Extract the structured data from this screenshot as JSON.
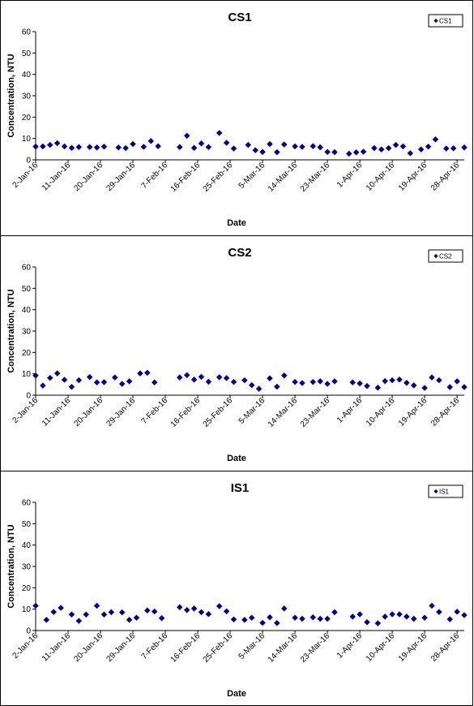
{
  "chart_data": [
    {
      "type": "scatter",
      "title": "CS1",
      "xlabel": "Date",
      "ylabel": "Concentration, NTU",
      "ylim": [
        0,
        60
      ],
      "yticks": [
        "0",
        "10",
        "20",
        "30",
        "40",
        "50",
        "60"
      ],
      "xlim": [
        "2016-01-02",
        "2016-04-30"
      ],
      "xticks": [
        "2-Jan-16",
        "11-Jan-16",
        "20-Jan-16",
        "29-Jan-16",
        "7-Feb-16",
        "16-Feb-16",
        "25-Feb-16",
        "5-Mar-16",
        "14-Mar-16",
        "23-Mar-16",
        "1-Apr-16",
        "10-Apr-16",
        "19-Apr-16",
        "28-Apr-16"
      ],
      "xtick_dates": [
        "2016-01-02",
        "2016-01-11",
        "2016-01-20",
        "2016-01-29",
        "2016-02-07",
        "2016-02-16",
        "2016-02-25",
        "2016-03-05",
        "2016-03-14",
        "2016-03-23",
        "2016-04-01",
        "2016-04-10",
        "2016-04-19",
        "2016-04-28"
      ],
      "grid": false,
      "legend_position": "top-right",
      "color": "#00008B",
      "marker": "diamond",
      "series": [
        {
          "name": "CS1",
          "x": [
            "2016-01-02",
            "2016-01-04",
            "2016-01-06",
            "2016-01-08",
            "2016-01-10",
            "2016-01-12",
            "2016-01-14",
            "2016-01-17",
            "2016-01-19",
            "2016-01-21",
            "2016-01-25",
            "2016-01-27",
            "2016-01-29",
            "2016-02-01",
            "2016-02-03",
            "2016-02-05",
            "2016-02-11",
            "2016-02-13",
            "2016-02-15",
            "2016-02-17",
            "2016-02-19",
            "2016-02-22",
            "2016-02-24",
            "2016-02-26",
            "2016-03-01",
            "2016-03-03",
            "2016-03-05",
            "2016-03-07",
            "2016-03-09",
            "2016-03-11",
            "2016-03-14",
            "2016-03-16",
            "2016-03-19",
            "2016-03-21",
            "2016-03-23",
            "2016-03-25",
            "2016-03-29",
            "2016-03-31",
            "2016-04-02",
            "2016-04-05",
            "2016-04-07",
            "2016-04-09",
            "2016-04-11",
            "2016-04-13",
            "2016-04-15",
            "2016-04-18",
            "2016-04-20",
            "2016-04-22",
            "2016-04-25",
            "2016-04-27",
            "2016-04-30"
          ],
          "y": [
            6.2,
            6.3,
            7.0,
            7.8,
            6.3,
            5.6,
            6.0,
            6.0,
            5.8,
            6.2,
            5.8,
            5.5,
            7.4,
            6.1,
            8.8,
            6.4,
            6.0,
            11.3,
            5.6,
            7.7,
            6.0,
            12.6,
            8.0,
            5.3,
            7.0,
            4.5,
            3.7,
            7.4,
            3.6,
            7.2,
            6.3,
            6.1,
            6.4,
            5.9,
            3.7,
            3.6,
            2.9,
            3.5,
            3.8,
            5.5,
            4.9,
            5.5,
            7.0,
            6.3,
            3.1,
            4.9,
            6.2,
            9.6,
            5.3,
            5.4,
            5.8
          ]
        }
      ]
    },
    {
      "type": "scatter",
      "title": "CS2",
      "xlabel": "Date",
      "ylabel": "Concentration, NTU",
      "ylim": [
        0,
        60
      ],
      "yticks": [
        "0",
        "10",
        "20",
        "30",
        "40",
        "50",
        "60"
      ],
      "xlim": [
        "2016-01-02",
        "2016-04-30"
      ],
      "xticks": [
        "2-Jan-16",
        "11-Jan-16",
        "20-Jan-16",
        "29-Jan-16",
        "7-Feb-16",
        "16-Feb-16",
        "25-Feb-16",
        "5-Mar-16",
        "14-Mar-16",
        "23-Mar-16",
        "1-Apr-16",
        "10-Apr-16",
        "19-Apr-16",
        "28-Apr-16"
      ],
      "xtick_dates": [
        "2016-01-02",
        "2016-01-11",
        "2016-01-20",
        "2016-01-29",
        "2016-02-07",
        "2016-02-16",
        "2016-02-25",
        "2016-03-05",
        "2016-03-14",
        "2016-03-23",
        "2016-04-01",
        "2016-04-10",
        "2016-04-19",
        "2016-04-28"
      ],
      "grid": false,
      "legend_position": "top-right",
      "color": "#00008B",
      "marker": "diamond",
      "series": [
        {
          "name": "CS2",
          "x": [
            "2016-01-02",
            "2016-01-04",
            "2016-01-06",
            "2016-01-08",
            "2016-01-10",
            "2016-01-12",
            "2016-01-14",
            "2016-01-17",
            "2016-01-19",
            "2016-01-21",
            "2016-01-24",
            "2016-01-26",
            "2016-01-28",
            "2016-01-31",
            "2016-02-02",
            "2016-02-04",
            "2016-02-11",
            "2016-02-13",
            "2016-02-15",
            "2016-02-17",
            "2016-02-19",
            "2016-02-22",
            "2016-02-24",
            "2016-02-26",
            "2016-02-29",
            "2016-03-02",
            "2016-03-04",
            "2016-03-07",
            "2016-03-09",
            "2016-03-11",
            "2016-03-14",
            "2016-03-16",
            "2016-03-19",
            "2016-03-21",
            "2016-03-23",
            "2016-03-25",
            "2016-03-30",
            "2016-04-01",
            "2016-04-03",
            "2016-04-06",
            "2016-04-08",
            "2016-04-10",
            "2016-04-12",
            "2016-04-14",
            "2016-04-16",
            "2016-04-19",
            "2016-04-21",
            "2016-04-23",
            "2016-04-26",
            "2016-04-28",
            "2016-04-30"
          ],
          "y": [
            9.2,
            4.5,
            8.1,
            10.2,
            7.2,
            3.9,
            7.0,
            8.5,
            6.0,
            6.1,
            8.3,
            5.3,
            6.5,
            10.2,
            10.5,
            6.0,
            8.3,
            9.4,
            7.3,
            8.6,
            6.3,
            8.4,
            8.0,
            6.2,
            7.0,
            4.7,
            3.0,
            7.9,
            4.0,
            9.2,
            6.2,
            5.7,
            6.2,
            6.5,
            5.3,
            6.5,
            6.0,
            5.5,
            4.3,
            3.5,
            6.6,
            7.0,
            7.3,
            5.8,
            4.6,
            3.4,
            8.3,
            7.0,
            3.8,
            6.5,
            3.8
          ]
        }
      ]
    },
    {
      "type": "scatter",
      "title": "IS1",
      "xlabel": "Date",
      "ylabel": "Concentration, NTU",
      "ylim": [
        0,
        60
      ],
      "yticks": [
        "0",
        "10",
        "20",
        "30",
        "40",
        "50",
        "60"
      ],
      "xlim": [
        "2016-01-02",
        "2016-04-30"
      ],
      "xticks": [
        "2-Jan-16",
        "11-Jan-16",
        "20-Jan-16",
        "29-Jan-16",
        "7-Feb-16",
        "16-Feb-16",
        "25-Feb-16",
        "5-Mar-16",
        "14-Mar-16",
        "23-Mar-16",
        "1-Apr-16",
        "10-Apr-16",
        "19-Apr-16",
        "28-Apr-16"
      ],
      "xtick_dates": [
        "2016-01-02",
        "2016-01-11",
        "2016-01-20",
        "2016-01-29",
        "2016-02-07",
        "2016-02-16",
        "2016-02-25",
        "2016-03-05",
        "2016-03-14",
        "2016-03-23",
        "2016-04-01",
        "2016-04-10",
        "2016-04-19",
        "2016-04-28"
      ],
      "grid": false,
      "legend_position": "top-right",
      "color": "#00008B",
      "marker": "diamond",
      "series": [
        {
          "name": "IS1",
          "x": [
            "2016-01-02",
            "2016-01-05",
            "2016-01-07",
            "2016-01-09",
            "2016-01-12",
            "2016-01-14",
            "2016-01-16",
            "2016-01-19",
            "2016-01-21",
            "2016-01-23",
            "2016-01-26",
            "2016-01-28",
            "2016-01-30",
            "2016-02-02",
            "2016-02-04",
            "2016-02-06",
            "2016-02-11",
            "2016-02-13",
            "2016-02-15",
            "2016-02-17",
            "2016-02-19",
            "2016-02-22",
            "2016-02-24",
            "2016-02-26",
            "2016-02-29",
            "2016-03-02",
            "2016-03-05",
            "2016-03-07",
            "2016-03-09",
            "2016-03-11",
            "2016-03-14",
            "2016-03-16",
            "2016-03-19",
            "2016-03-21",
            "2016-03-23",
            "2016-03-25",
            "2016-03-30",
            "2016-04-01",
            "2016-04-03",
            "2016-04-06",
            "2016-04-08",
            "2016-04-10",
            "2016-04-12",
            "2016-04-14",
            "2016-04-16",
            "2016-04-19",
            "2016-04-21",
            "2016-04-23",
            "2016-04-26",
            "2016-04-28",
            "2016-04-30"
          ],
          "y": [
            11.6,
            5.0,
            8.7,
            10.6,
            7.5,
            4.5,
            7.5,
            11.6,
            7.5,
            8.6,
            8.5,
            5.0,
            6.0,
            9.4,
            8.9,
            5.8,
            10.9,
            9.6,
            10.3,
            8.6,
            7.7,
            11.4,
            9.0,
            5.2,
            5.0,
            6.0,
            3.6,
            6.2,
            3.5,
            10.3,
            6.0,
            5.5,
            6.2,
            5.5,
            5.5,
            8.6,
            6.5,
            7.6,
            3.9,
            3.4,
            6.5,
            7.6,
            7.6,
            6.5,
            5.5,
            6.0,
            11.6,
            8.7,
            5.3,
            8.8,
            7.2
          ]
        }
      ]
    }
  ]
}
